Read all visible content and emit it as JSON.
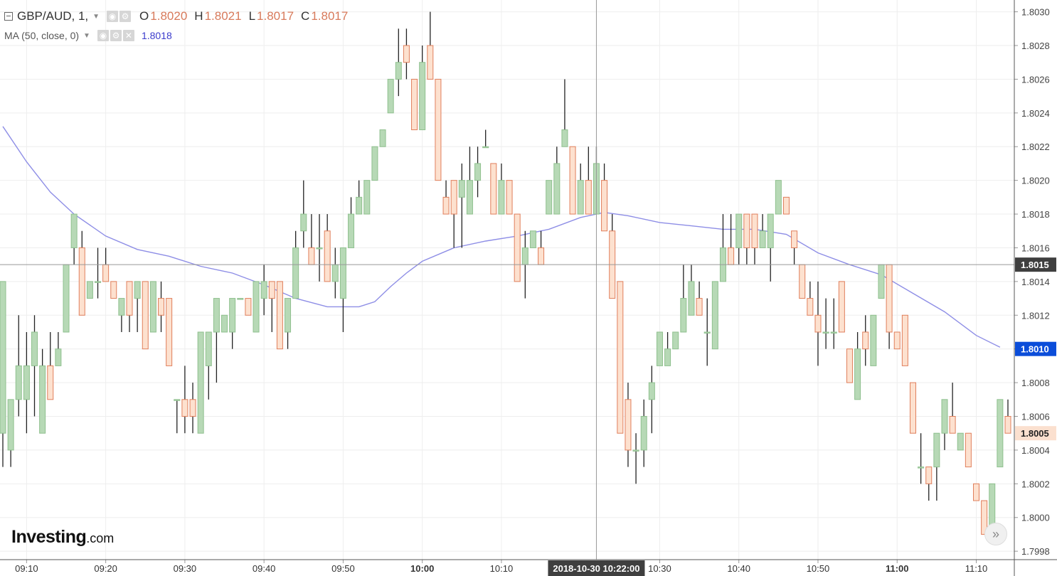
{
  "legend": {
    "symbol": "GBP/AUD, 1,",
    "open_label": "O",
    "open": "1.8020",
    "high_label": "H",
    "high": "1.8021",
    "low_label": "L",
    "low": "1.8017",
    "close_label": "C",
    "close": "1.8017",
    "ma_label": "MA (50, close, 0)",
    "ma_value": "1.8018"
  },
  "logo": {
    "brand": "Investing",
    "domain": ".com"
  },
  "colors": {
    "up_fill": "#b7d9b6",
    "up_stroke": "#8fc08e",
    "down_fill": "#fde1cf",
    "down_stroke": "#e07f5c",
    "wick": "#222222",
    "ma_line": "#8e8ee6",
    "crosshair_tag": "#3f3f3f",
    "current_tag": "#0b4dd9",
    "last_price_tag": "#fbe0cf"
  },
  "chart_data": {
    "type": "candlestick",
    "symbol": "GBP/AUD",
    "interval": "1",
    "ylim": [
      1.79975,
      1.80307
    ],
    "y_ticks": [
      "1.7998",
      "1.8000",
      "1.8002",
      "1.8004",
      "1.8006",
      "1.8008",
      "1.8010",
      "1.8012",
      "1.8014",
      "1.8016",
      "1.8018",
      "1.8020",
      "1.8022",
      "1.8024",
      "1.8026",
      "1.8028",
      "1.8030"
    ],
    "x_ticks": [
      {
        "label": "09:10",
        "bold": false
      },
      {
        "label": "09:20",
        "bold": false
      },
      {
        "label": "09:30",
        "bold": false
      },
      {
        "label": "09:40",
        "bold": false
      },
      {
        "label": "09:50",
        "bold": false
      },
      {
        "label": "10:00",
        "bold": true
      },
      {
        "label": "10:10",
        "bold": false
      },
      {
        "label": "10:30",
        "bold": false
      },
      {
        "label": "10:40",
        "bold": false
      },
      {
        "label": "10:50",
        "bold": false
      },
      {
        "label": "11:00",
        "bold": true
      },
      {
        "label": "11:10",
        "bold": false
      }
    ],
    "grid": true,
    "crosshair": {
      "time": "2018-10-30 10:22:00",
      "price": "1.8015"
    },
    "price_tags": {
      "ma": "1.8010",
      "last": "1.8005"
    },
    "ma_period": 50,
    "candles": [
      {
        "t": "09:07",
        "o": 1.8005,
        "h": 1.8014,
        "l": 1.8003,
        "c": 1.8014
      },
      {
        "t": "09:08",
        "o": 1.8004,
        "h": 1.8007,
        "l": 1.8003,
        "c": 1.8007
      },
      {
        "t": "09:09",
        "o": 1.8007,
        "h": 1.8012,
        "l": 1.8006,
        "c": 1.8009
      },
      {
        "t": "09:10",
        "o": 1.8007,
        "h": 1.8011,
        "l": 1.8005,
        "c": 1.8009
      },
      {
        "t": "09:11",
        "o": 1.8009,
        "h": 1.8012,
        "l": 1.8006,
        "c": 1.8011
      },
      {
        "t": "09:12",
        "o": 1.8005,
        "h": 1.801,
        "l": 1.8005,
        "c": 1.8009
      },
      {
        "t": "09:13",
        "o": 1.8009,
        "h": 1.8011,
        "l": 1.8007,
        "c": 1.8007
      },
      {
        "t": "09:14",
        "o": 1.8009,
        "h": 1.8011,
        "l": 1.8009,
        "c": 1.801
      },
      {
        "t": "09:15",
        "o": 1.8011,
        "h": 1.8015,
        "l": 1.8011,
        "c": 1.8015
      },
      {
        "t": "09:16",
        "o": 1.8016,
        "h": 1.8018,
        "l": 1.8015,
        "c": 1.8018
      },
      {
        "t": "09:17",
        "o": 1.8016,
        "h": 1.8017,
        "l": 1.8012,
        "c": 1.8012
      },
      {
        "t": "09:18",
        "o": 1.8013,
        "h": 1.8014,
        "l": 1.8013,
        "c": 1.8014
      },
      {
        "t": "09:19",
        "o": 1.8014,
        "h": 1.8016,
        "l": 1.8013,
        "c": 1.8014
      },
      {
        "t": "09:20",
        "o": 1.8015,
        "h": 1.8016,
        "l": 1.8014,
        "c": 1.8014
      },
      {
        "t": "09:21",
        "o": 1.8014,
        "h": 1.8014,
        "l": 1.8013,
        "c": 1.8013
      },
      {
        "t": "09:22",
        "o": 1.8012,
        "h": 1.8013,
        "l": 1.8011,
        "c": 1.8013
      },
      {
        "t": "09:23",
        "o": 1.8014,
        "h": 1.8014,
        "l": 1.8011,
        "c": 1.8012
      },
      {
        "t": "09:24",
        "o": 1.8013,
        "h": 1.8014,
        "l": 1.8011,
        "c": 1.8014
      },
      {
        "t": "09:25",
        "o": 1.8014,
        "h": 1.8014,
        "l": 1.801,
        "c": 1.801
      },
      {
        "t": "09:26",
        "o": 1.8011,
        "h": 1.8014,
        "l": 1.8011,
        "c": 1.8014
      },
      {
        "t": "09:27",
        "o": 1.8013,
        "h": 1.8014,
        "l": 1.8011,
        "c": 1.8012
      },
      {
        "t": "09:28",
        "o": 1.8013,
        "h": 1.8013,
        "l": 1.8009,
        "c": 1.8009
      },
      {
        "t": "09:29",
        "o": 1.8007,
        "h": 1.8007,
        "l": 1.8005,
        "c": 1.8007
      },
      {
        "t": "09:30",
        "o": 1.8007,
        "h": 1.8009,
        "l": 1.8005,
        "c": 1.8006
      },
      {
        "t": "09:31",
        "o": 1.8007,
        "h": 1.8008,
        "l": 1.8005,
        "c": 1.8006
      },
      {
        "t": "09:32",
        "o": 1.8005,
        "h": 1.8011,
        "l": 1.8005,
        "c": 1.8011
      },
      {
        "t": "09:33",
        "o": 1.8009,
        "h": 1.8011,
        "l": 1.8007,
        "c": 1.8011
      },
      {
        "t": "09:34",
        "o": 1.8011,
        "h": 1.8013,
        "l": 1.8008,
        "c": 1.8013
      },
      {
        "t": "09:35",
        "o": 1.8011,
        "h": 1.8012,
        "l": 1.8011,
        "c": 1.8012
      },
      {
        "t": "09:36",
        "o": 1.8011,
        "h": 1.8013,
        "l": 1.801,
        "c": 1.8013
      },
      {
        "t": "09:37",
        "o": 1.8013,
        "h": 1.8013,
        "l": 1.8013,
        "c": 1.8013
      },
      {
        "t": "09:38",
        "o": 1.8013,
        "h": 1.8013,
        "l": 1.8012,
        "c": 1.8012
      },
      {
        "t": "09:39",
        "o": 1.8011,
        "h": 1.8014,
        "l": 1.8011,
        "c": 1.8014
      },
      {
        "t": "09:40",
        "o": 1.8013,
        "h": 1.8015,
        "l": 1.8012,
        "c": 1.8014
      },
      {
        "t": "09:41",
        "o": 1.8014,
        "h": 1.8014,
        "l": 1.8011,
        "c": 1.8013
      },
      {
        "t": "09:42",
        "o": 1.8014,
        "h": 1.8014,
        "l": 1.801,
        "c": 1.801
      },
      {
        "t": "09:43",
        "o": 1.8011,
        "h": 1.8013,
        "l": 1.801,
        "c": 1.8013
      },
      {
        "t": "09:44",
        "o": 1.8013,
        "h": 1.8017,
        "l": 1.8013,
        "c": 1.8016
      },
      {
        "t": "09:45",
        "o": 1.8017,
        "h": 1.802,
        "l": 1.8016,
        "c": 1.8018
      },
      {
        "t": "09:46",
        "o": 1.8016,
        "h": 1.8018,
        "l": 1.8015,
        "c": 1.8015
      },
      {
        "t": "09:47",
        "o": 1.8016,
        "h": 1.8018,
        "l": 1.8014,
        "c": 1.8016
      },
      {
        "t": "09:48",
        "o": 1.8017,
        "h": 1.8018,
        "l": 1.8014,
        "c": 1.8014
      },
      {
        "t": "09:49",
        "o": 1.8014,
        "h": 1.8016,
        "l": 1.8013,
        "c": 1.8015
      },
      {
        "t": "09:50",
        "o": 1.8013,
        "h": 1.8016,
        "l": 1.8011,
        "c": 1.8016
      },
      {
        "t": "09:51",
        "o": 1.8016,
        "h": 1.8019,
        "l": 1.8016,
        "c": 1.8018
      },
      {
        "t": "09:52",
        "o": 1.8018,
        "h": 1.802,
        "l": 1.8018,
        "c": 1.8019
      },
      {
        "t": "09:53",
        "o": 1.8018,
        "h": 1.802,
        "l": 1.8018,
        "c": 1.802
      },
      {
        "t": "09:54",
        "o": 1.802,
        "h": 1.8022,
        "l": 1.802,
        "c": 1.8022
      },
      {
        "t": "09:55",
        "o": 1.8022,
        "h": 1.8023,
        "l": 1.8022,
        "c": 1.8023
      },
      {
        "t": "09:56",
        "o": 1.8024,
        "h": 1.8026,
        "l": 1.8024,
        "c": 1.8026
      },
      {
        "t": "09:57",
        "o": 1.8026,
        "h": 1.8029,
        "l": 1.8025,
        "c": 1.8027
      },
      {
        "t": "09:58",
        "o": 1.8028,
        "h": 1.8029,
        "l": 1.8026,
        "c": 1.8027
      },
      {
        "t": "09:59",
        "o": 1.8026,
        "h": 1.8026,
        "l": 1.8023,
        "c": 1.8023
      },
      {
        "t": "10:00",
        "o": 1.8023,
        "h": 1.8028,
        "l": 1.8023,
        "c": 1.8027
      },
      {
        "t": "10:01",
        "o": 1.8028,
        "h": 1.803,
        "l": 1.8026,
        "c": 1.8026
      },
      {
        "t": "10:02",
        "o": 1.8026,
        "h": 1.8026,
        "l": 1.802,
        "c": 1.802
      },
      {
        "t": "10:03",
        "o": 1.8019,
        "h": 1.802,
        "l": 1.8018,
        "c": 1.8018
      },
      {
        "t": "10:04",
        "o": 1.802,
        "h": 1.802,
        "l": 1.8016,
        "c": 1.8018
      },
      {
        "t": "10:05",
        "o": 1.8019,
        "h": 1.8021,
        "l": 1.8016,
        "c": 1.802
      },
      {
        "t": "10:06",
        "o": 1.8018,
        "h": 1.8022,
        "l": 1.8018,
        "c": 1.802
      },
      {
        "t": "10:07",
        "o": 1.802,
        "h": 1.8022,
        "l": 1.8019,
        "c": 1.8021
      },
      {
        "t": "10:08",
        "o": 1.8022,
        "h": 1.8023,
        "l": 1.8022,
        "c": 1.8022
      },
      {
        "t": "10:09",
        "o": 1.8021,
        "h": 1.8021,
        "l": 1.8018,
        "c": 1.8018
      },
      {
        "t": "10:10",
        "o": 1.8018,
        "h": 1.8021,
        "l": 1.8018,
        "c": 1.802
      },
      {
        "t": "10:11",
        "o": 1.802,
        "h": 1.802,
        "l": 1.8018,
        "c": 1.8018
      },
      {
        "t": "10:12",
        "o": 1.8018,
        "h": 1.8018,
        "l": 1.8014,
        "c": 1.8014
      },
      {
        "t": "10:13",
        "o": 1.8015,
        "h": 1.8017,
        "l": 1.8013,
        "c": 1.8016
      },
      {
        "t": "10:14",
        "o": 1.8016,
        "h": 1.8017,
        "l": 1.8016,
        "c": 1.8017
      },
      {
        "t": "10:15",
        "o": 1.8016,
        "h": 1.8017,
        "l": 1.8015,
        "c": 1.8015
      },
      {
        "t": "10:16",
        "o": 1.8018,
        "h": 1.802,
        "l": 1.8018,
        "c": 1.802
      },
      {
        "t": "10:17",
        "o": 1.8018,
        "h": 1.8022,
        "l": 1.8018,
        "c": 1.8021
      },
      {
        "t": "10:18",
        "o": 1.8022,
        "h": 1.8026,
        "l": 1.8022,
        "c": 1.8023
      },
      {
        "t": "10:19",
        "o": 1.8022,
        "h": 1.8022,
        "l": 1.8018,
        "c": 1.8018
      },
      {
        "t": "10:20",
        "o": 1.8018,
        "h": 1.8021,
        "l": 1.8018,
        "c": 1.802
      },
      {
        "t": "10:21",
        "o": 1.802,
        "h": 1.8022,
        "l": 1.8018,
        "c": 1.8018
      },
      {
        "t": "10:22",
        "o": 1.8018,
        "h": 1.8022,
        "l": 1.8018,
        "c": 1.8021
      },
      {
        "t": "10:23",
        "o": 1.802,
        "h": 1.8021,
        "l": 1.8017,
        "c": 1.8017
      },
      {
        "t": "10:24",
        "o": 1.8017,
        "h": 1.8018,
        "l": 1.8013,
        "c": 1.8013
      },
      {
        "t": "10:25",
        "o": 1.8014,
        "h": 1.8014,
        "l": 1.8005,
        "c": 1.8005
      },
      {
        "t": "10:26",
        "o": 1.8007,
        "h": 1.8008,
        "l": 1.8003,
        "c": 1.8004
      },
      {
        "t": "10:27",
        "o": 1.8004,
        "h": 1.8005,
        "l": 1.8002,
        "c": 1.8004
      },
      {
        "t": "10:28",
        "o": 1.8004,
        "h": 1.8007,
        "l": 1.8003,
        "c": 1.8006
      },
      {
        "t": "10:29",
        "o": 1.8007,
        "h": 1.8009,
        "l": 1.8005,
        "c": 1.8008
      },
      {
        "t": "10:30",
        "o": 1.8009,
        "h": 1.8011,
        "l": 1.8009,
        "c": 1.8011
      },
      {
        "t": "10:31",
        "o": 1.8009,
        "h": 1.8011,
        "l": 1.8009,
        "c": 1.801
      },
      {
        "t": "10:32",
        "o": 1.801,
        "h": 1.8011,
        "l": 1.801,
        "c": 1.8011
      },
      {
        "t": "10:33",
        "o": 1.8011,
        "h": 1.8015,
        "l": 1.8011,
        "c": 1.8013
      },
      {
        "t": "10:34",
        "o": 1.8012,
        "h": 1.8015,
        "l": 1.8012,
        "c": 1.8014
      },
      {
        "t": "10:35",
        "o": 1.8013,
        "h": 1.8014,
        "l": 1.8012,
        "c": 1.8012
      },
      {
        "t": "10:36",
        "o": 1.8011,
        "h": 1.8013,
        "l": 1.8009,
        "c": 1.8011
      },
      {
        "t": "10:37",
        "o": 1.801,
        "h": 1.8014,
        "l": 1.801,
        "c": 1.8014
      },
      {
        "t": "10:38",
        "o": 1.8014,
        "h": 1.8018,
        "l": 1.8014,
        "c": 1.8016
      },
      {
        "t": "10:39",
        "o": 1.8016,
        "h": 1.8018,
        "l": 1.8015,
        "c": 1.8015
      },
      {
        "t": "10:40",
        "o": 1.8016,
        "h": 1.8018,
        "l": 1.8015,
        "c": 1.8018
      },
      {
        "t": "10:41",
        "o": 1.8018,
        "h": 1.8018,
        "l": 1.8015,
        "c": 1.8016
      },
      {
        "t": "10:42",
        "o": 1.8018,
        "h": 1.8018,
        "l": 1.8015,
        "c": 1.8016
      },
      {
        "t": "10:43",
        "o": 1.8016,
        "h": 1.8018,
        "l": 1.8016,
        "c": 1.8017
      },
      {
        "t": "10:44",
        "o": 1.8016,
        "h": 1.8018,
        "l": 1.8014,
        "c": 1.8018
      },
      {
        "t": "10:45",
        "o": 1.8018,
        "h": 1.802,
        "l": 1.8018,
        "c": 1.802
      },
      {
        "t": "10:46",
        "o": 1.8019,
        "h": 1.8019,
        "l": 1.8018,
        "c": 1.8018
      },
      {
        "t": "10:47",
        "o": 1.8017,
        "h": 1.8017,
        "l": 1.8015,
        "c": 1.8016
      },
      {
        "t": "10:48",
        "o": 1.8015,
        "h": 1.8015,
        "l": 1.8013,
        "c": 1.8013
      },
      {
        "t": "10:49",
        "o": 1.8013,
        "h": 1.8014,
        "l": 1.8012,
        "c": 1.8012
      },
      {
        "t": "10:50",
        "o": 1.8012,
        "h": 1.8014,
        "l": 1.8009,
        "c": 1.8011
      },
      {
        "t": "10:51",
        "o": 1.8011,
        "h": 1.8013,
        "l": 1.801,
        "c": 1.8011
      },
      {
        "t": "10:52",
        "o": 1.8011,
        "h": 1.8013,
        "l": 1.801,
        "c": 1.8011
      },
      {
        "t": "10:53",
        "o": 1.8014,
        "h": 1.8014,
        "l": 1.8011,
        "c": 1.8011
      },
      {
        "t": "10:54",
        "o": 1.801,
        "h": 1.801,
        "l": 1.8008,
        "c": 1.8008
      },
      {
        "t": "10:55",
        "o": 1.8007,
        "h": 1.8011,
        "l": 1.8007,
        "c": 1.801
      },
      {
        "t": "10:56",
        "o": 1.8011,
        "h": 1.8012,
        "l": 1.8009,
        "c": 1.801
      },
      {
        "t": "10:57",
        "o": 1.8009,
        "h": 1.8012,
        "l": 1.8009,
        "c": 1.8012
      },
      {
        "t": "10:58",
        "o": 1.8013,
        "h": 1.8015,
        "l": 1.8013,
        "c": 1.8015
      },
      {
        "t": "10:59",
        "o": 1.8015,
        "h": 1.8015,
        "l": 1.801,
        "c": 1.8011
      },
      {
        "t": "11:00",
        "o": 1.8011,
        "h": 1.8011,
        "l": 1.801,
        "c": 1.801
      },
      {
        "t": "11:01",
        "o": 1.8012,
        "h": 1.8012,
        "l": 1.8009,
        "c": 1.8009
      },
      {
        "t": "11:02",
        "o": 1.8008,
        "h": 1.8008,
        "l": 1.8005,
        "c": 1.8005
      },
      {
        "t": "11:03",
        "o": 1.8003,
        "h": 1.8005,
        "l": 1.8002,
        "c": 1.8003
      },
      {
        "t": "11:04",
        "o": 1.8003,
        "h": 1.8003,
        "l": 1.8001,
        "c": 1.8002
      },
      {
        "t": "11:05",
        "o": 1.8003,
        "h": 1.8005,
        "l": 1.8001,
        "c": 1.8005
      },
      {
        "t": "11:06",
        "o": 1.8005,
        "h": 1.8007,
        "l": 1.8004,
        "c": 1.8007
      },
      {
        "t": "11:07",
        "o": 1.8006,
        "h": 1.8008,
        "l": 1.8005,
        "c": 1.8005
      },
      {
        "t": "11:08",
        "o": 1.8004,
        "h": 1.8005,
        "l": 1.8004,
        "c": 1.8005
      },
      {
        "t": "11:09",
        "o": 1.8005,
        "h": 1.8005,
        "l": 1.8003,
        "c": 1.8003
      },
      {
        "t": "11:10",
        "o": 1.8002,
        "h": 1.8002,
        "l": 1.8001,
        "c": 1.8001
      },
      {
        "t": "11:11",
        "o": 1.8001,
        "h": 1.8001,
        "l": 1.7999,
        "c": 1.7999
      },
      {
        "t": "11:12",
        "o": 1.7999,
        "h": 1.8002,
        "l": 1.7999,
        "c": 1.8002
      },
      {
        "t": "11:13",
        "o": 1.8003,
        "h": 1.8007,
        "l": 1.8003,
        "c": 1.8007
      },
      {
        "t": "11:14",
        "o": 1.8006,
        "h": 1.8007,
        "l": 1.8005,
        "c": 1.8005
      }
    ],
    "ma_series": [
      {
        "t": "09:07",
        "v": 1.80232
      },
      {
        "t": "09:10",
        "v": 1.80211
      },
      {
        "t": "09:13",
        "v": 1.80193
      },
      {
        "t": "09:16",
        "v": 1.8018
      },
      {
        "t": "09:20",
        "v": 1.80167
      },
      {
        "t": "09:24",
        "v": 1.80159
      },
      {
        "t": "09:28",
        "v": 1.80155
      },
      {
        "t": "09:32",
        "v": 1.80149
      },
      {
        "t": "09:36",
        "v": 1.80145
      },
      {
        "t": "09:40",
        "v": 1.80138
      },
      {
        "t": "09:44",
        "v": 1.8013
      },
      {
        "t": "09:48",
        "v": 1.80125
      },
      {
        "t": "09:52",
        "v": 1.80125
      },
      {
        "t": "09:54",
        "v": 1.80128
      },
      {
        "t": "09:56",
        "v": 1.80137
      },
      {
        "t": "09:58",
        "v": 1.80145
      },
      {
        "t": "10:00",
        "v": 1.80152
      },
      {
        "t": "10:04",
        "v": 1.8016
      },
      {
        "t": "10:08",
        "v": 1.80164
      },
      {
        "t": "10:12",
        "v": 1.80167
      },
      {
        "t": "10:16",
        "v": 1.80171
      },
      {
        "t": "10:20",
        "v": 1.80178
      },
      {
        "t": "10:23",
        "v": 1.80181
      },
      {
        "t": "10:26",
        "v": 1.80179
      },
      {
        "t": "10:30",
        "v": 1.80175
      },
      {
        "t": "10:34",
        "v": 1.80173
      },
      {
        "t": "10:38",
        "v": 1.80171
      },
      {
        "t": "10:42",
        "v": 1.80171
      },
      {
        "t": "10:46",
        "v": 1.80168
      },
      {
        "t": "10:50",
        "v": 1.80157
      },
      {
        "t": "10:54",
        "v": 1.8015
      },
      {
        "t": "10:58",
        "v": 1.80144
      },
      {
        "t": "11:02",
        "v": 1.80133
      },
      {
        "t": "11:06",
        "v": 1.80122
      },
      {
        "t": "11:10",
        "v": 1.80108
      },
      {
        "t": "11:13",
        "v": 1.80101
      }
    ]
  }
}
